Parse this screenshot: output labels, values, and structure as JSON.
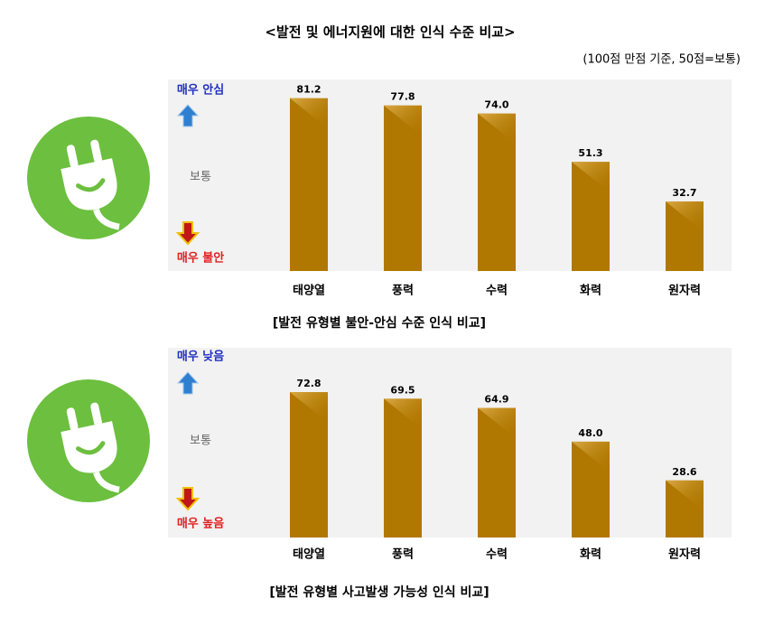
{
  "title": "<발전 및 에너지원에 대한 인식 수준 비교>",
  "subtitle": "(100점 만점 기준, 50점=보통)",
  "chart_data": [
    {
      "type": "bar",
      "caption": "[발전 유형별 불안-안심 수준 인식 비교]",
      "scale_labels": [
        "매우 안심",
        "보통",
        "매우 불안"
      ],
      "categories": [
        "태양열",
        "풍력",
        "수력",
        "화력",
        "원자력"
      ],
      "values": [
        81.2,
        77.8,
        74.0,
        51.3,
        32.7
      ],
      "value_labels": [
        "81.2",
        "77.8",
        "74.0",
        "51.3",
        "32.7"
      ],
      "color": "#b07800",
      "ylim": [
        0,
        90
      ]
    },
    {
      "type": "bar",
      "caption": "[발전 유형별 사고발생 가능성 인식 비교]",
      "scale_labels": [
        "매우 낮음",
        "보통",
        "매우 높음"
      ],
      "categories": [
        "태양열",
        "풍력",
        "수력",
        "화력",
        "원자력"
      ],
      "values": [
        72.8,
        69.5,
        64.9,
        48.0,
        28.6
      ],
      "value_labels": [
        "72.8",
        "69.5",
        "64.9",
        "48.0",
        "28.6"
      ],
      "color": "#b07800",
      "ylim": [
        0,
        95
      ]
    }
  ]
}
